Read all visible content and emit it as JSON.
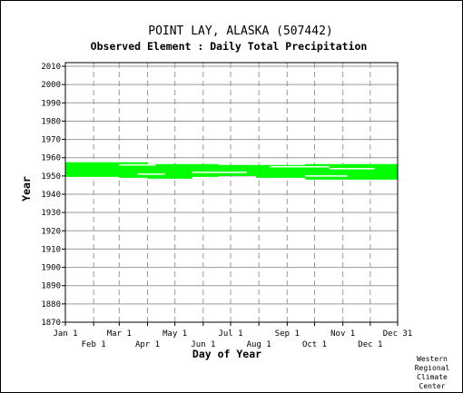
{
  "chart_data": {
    "type": "area",
    "title": "POINT LAY, ALASKA   (507442)",
    "subtitle": "Observed Element : Daily Total Precipitation",
    "xlabel": "Day of Year",
    "ylabel": "Year",
    "ylim": [
      1870,
      2012
    ],
    "x_ticks_upper": [
      "Jan 1",
      "Mar 1",
      "May 1",
      "Jul 1",
      "Sep 1",
      "Nov 1",
      "Dec 31"
    ],
    "x_ticks_upper_days": [
      1,
      60,
      121,
      182,
      244,
      305,
      365
    ],
    "x_ticks_lower": [
      "Feb 1",
      "Apr 1",
      "Jun 1",
      "Aug 1",
      "Oct 1",
      "Dec 1"
    ],
    "x_ticks_lower_days": [
      32,
      91,
      152,
      213,
      274,
      335
    ],
    "y_ticks": [
      1870,
      1880,
      1890,
      1900,
      1910,
      1920,
      1930,
      1940,
      1950,
      1960,
      1970,
      1980,
      1990,
      2000,
      2010
    ],
    "grid": true,
    "series_color": "#00ff00",
    "coverage": [
      {
        "from_day": 1,
        "to_day": 60,
        "start_year": 1949.5,
        "end_year": 1957.5
      },
      {
        "from_day": 60,
        "to_day": 91,
        "start_year": 1949.0,
        "end_year": 1957.5
      },
      {
        "from_day": 91,
        "to_day": 140,
        "start_year": 1948.5,
        "end_year": 1956.5
      },
      {
        "from_day": 140,
        "to_day": 169,
        "start_year": 1949.5,
        "end_year": 1956.5
      },
      {
        "from_day": 169,
        "to_day": 210,
        "start_year": 1950.0,
        "end_year": 1956.0
      },
      {
        "from_day": 210,
        "to_day": 264,
        "start_year": 1949.0,
        "end_year": 1956.0
      },
      {
        "from_day": 264,
        "to_day": 305,
        "start_year": 1948.0,
        "end_year": 1956.5
      },
      {
        "from_day": 305,
        "to_day": 365,
        "start_year": 1948.0,
        "end_year": 1956.5
      }
    ],
    "gaps": [
      {
        "from_day": 80,
        "to_day": 110,
        "year": 1951.0
      },
      {
        "from_day": 140,
        "to_day": 200,
        "year": 1952.0
      },
      {
        "from_day": 264,
        "to_day": 310,
        "year": 1950.0
      },
      {
        "from_day": 60,
        "to_day": 100,
        "year": 1956.0
      },
      {
        "from_day": 225,
        "to_day": 290,
        "year": 1955.0
      },
      {
        "from_day": 290,
        "to_day": 340,
        "year": 1954.0
      }
    ]
  },
  "credit": [
    "Western",
    "Regional",
    "Climate",
    "Center"
  ]
}
